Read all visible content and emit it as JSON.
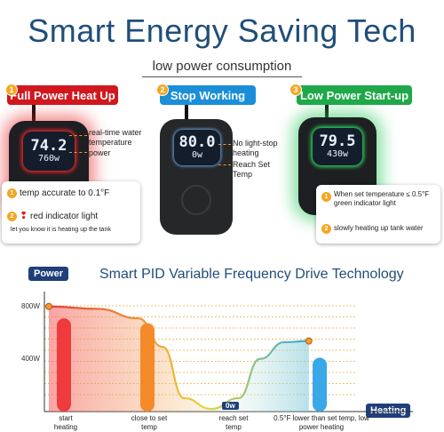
{
  "header": {
    "title": "Smart Energy Saving Tech",
    "subtitle": "low power consumption"
  },
  "panels": [
    {
      "number": "1",
      "label": "Full Power Heat Up",
      "color": "#d0181e",
      "display_top": "74.2",
      "display_bottom": "760w",
      "callouts": [
        "real-time water temperature",
        "power"
      ],
      "card_items": [
        {
          "number": "1",
          "text": "temp accurate to 0.1°F"
        },
        {
          "number": "2",
          "text": "red indicator light"
        }
      ],
      "card_note": "let you know it is heating up the tank"
    },
    {
      "number": "2",
      "label": "Stop Working",
      "color": "#1a8fd8",
      "display_top": "80.0",
      "display_bottom": "0w",
      "callouts": [
        "No light-stop heating",
        "Reach Set Temp"
      ]
    },
    {
      "number": "3",
      "label": "Low Power Start-up",
      "color": "#1fa84a",
      "display_top": "79.5",
      "display_bottom": "430w",
      "card_items": [
        {
          "number": "1",
          "text": "When set temperature ≤ 0.5°F green indicator light"
        },
        {
          "number": "2",
          "text": "slowly heating up tank water"
        }
      ]
    }
  ],
  "pid": {
    "title": "Smart PID Variable Frequency Drive Technology",
    "y_tag": "Power",
    "x_tag": "Heating"
  },
  "chart_data": {
    "type": "area",
    "title": "Smart PID Variable Frequency Drive Technology",
    "ylabel": "Power",
    "xlabel": "Heating",
    "y_ticks": [
      "800W",
      "400W"
    ],
    "ylim": [
      0,
      1000
    ],
    "categories": [
      "start heating",
      "close to set temp",
      "reach set temp",
      "0.5°F lower than set temp, low power heating"
    ],
    "point_label": "0w",
    "bars": [
      {
        "category": "start heating",
        "value": 760,
        "color": "#ef3b3b"
      },
      {
        "category": "close to set temp",
        "value": 720,
        "color": "#f58a2a"
      },
      {
        "category": "0.5°F lower than set temp, low power heating",
        "value": 430,
        "color": "#38a8e8"
      }
    ],
    "curve": [
      {
        "x": 0.0,
        "y": 860
      },
      {
        "x": 0.18,
        "y": 840
      },
      {
        "x": 0.33,
        "y": 760
      },
      {
        "x": 0.42,
        "y": 520
      },
      {
        "x": 0.5,
        "y": 90
      },
      {
        "x": 0.6,
        "y": 0
      },
      {
        "x": 0.7,
        "y": 90
      },
      {
        "x": 0.78,
        "y": 420
      },
      {
        "x": 0.87,
        "y": 560
      },
      {
        "x": 0.96,
        "y": 570
      }
    ]
  }
}
